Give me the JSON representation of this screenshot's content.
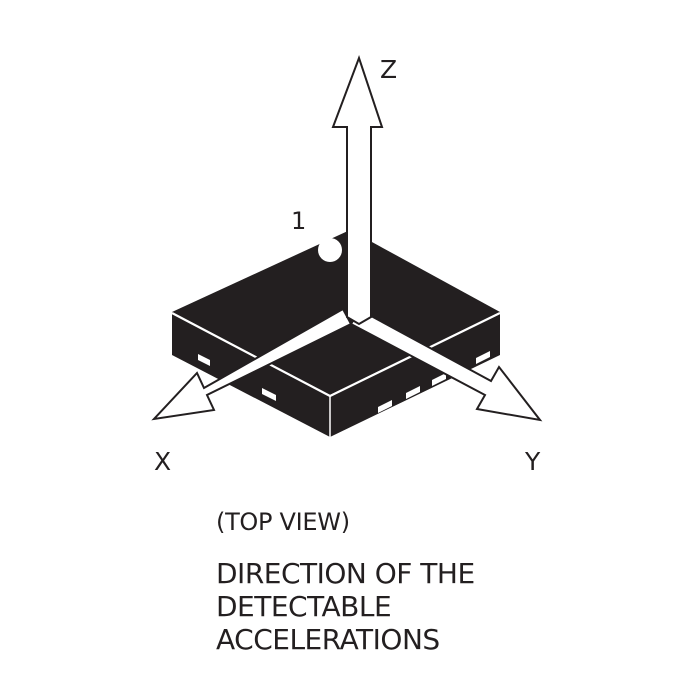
{
  "diagram": {
    "axes": {
      "x": "X",
      "y": "Y",
      "z": "Z"
    },
    "pin1_label": "1",
    "view_caption": "(TOP VIEW)",
    "direction_caption": [
      "DIRECTION OF THE",
      "DETECTABLE",
      "ACCELERATIONS"
    ]
  },
  "colors": {
    "ink": "#231f20",
    "paper": "#ffffff"
  }
}
